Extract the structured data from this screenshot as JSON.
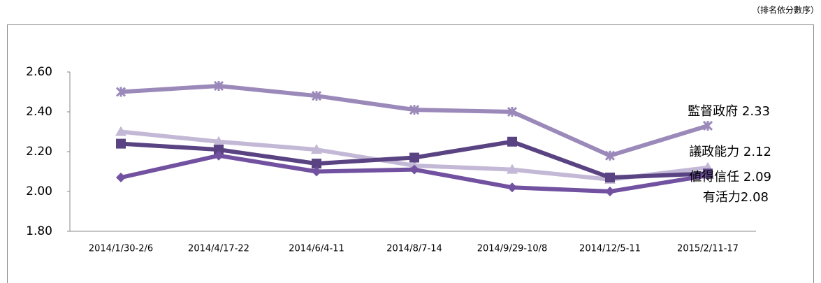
{
  "chart_data": {
    "type": "line",
    "note": "（排名依分數序）",
    "categories": [
      "2014/1/30-2/6",
      "2014/4/17-22",
      "2014/6/4-11",
      "2014/8/7-14",
      "2014/9/29-10/8",
      "2014/12/5-11",
      "2015/2/11-17"
    ],
    "series": [
      {
        "name": "監督政府",
        "color": "#9b89ba",
        "marker": "x",
        "values": [
          2.5,
          2.53,
          2.48,
          2.41,
          2.4,
          2.18,
          2.33
        ]
      },
      {
        "name": "議政能力",
        "color": "#c3b9d6",
        "marker": "triangle",
        "values": [
          2.3,
          2.25,
          2.21,
          2.13,
          2.11,
          2.06,
          2.12
        ]
      },
      {
        "name": "値得信任",
        "color": "#5a4382",
        "marker": "square",
        "values": [
          2.24,
          2.21,
          2.14,
          2.17,
          2.25,
          2.07,
          2.09
        ]
      },
      {
        "name": "有活力",
        "color": "#7252a0",
        "marker": "diamond",
        "values": [
          2.07,
          2.18,
          2.1,
          2.11,
          2.02,
          2.0,
          2.08
        ]
      }
    ],
    "annotations": [
      "監督政府 2.33",
      "議政能力 2.12",
      "値得信任 2.09",
      "有活力2.08"
    ],
    "ylim": [
      1.8,
      2.6
    ],
    "yticks": [
      {
        "value": 1.8,
        "label": "1.80"
      },
      {
        "value": 2.0,
        "label": "2.00"
      },
      {
        "value": 2.2,
        "label": "2.20"
      },
      {
        "value": 2.4,
        "label": "2.40"
      },
      {
        "value": 2.6,
        "label": "2.60"
      }
    ],
    "grid": false
  }
}
